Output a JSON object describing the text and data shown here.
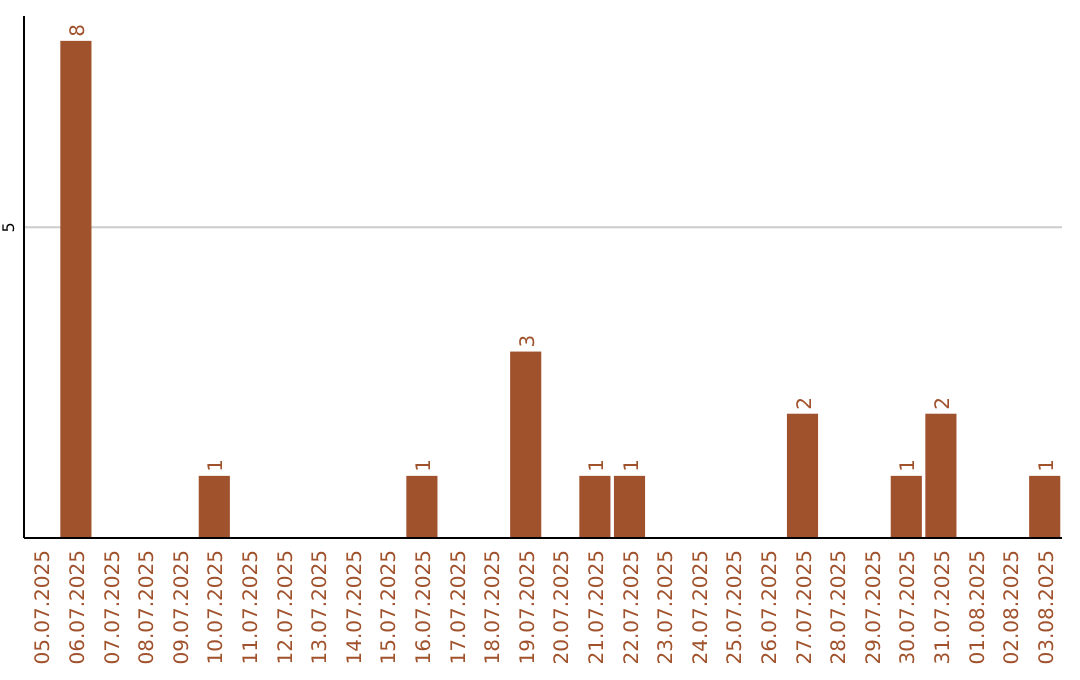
{
  "chart_data": {
    "type": "bar",
    "categories": [
      "05.07.2025",
      "06.07.2025",
      "07.07.2025",
      "08.07.2025",
      "09.07.2025",
      "10.07.2025",
      "11.07.2025",
      "12.07.2025",
      "13.07.2025",
      "14.07.2025",
      "15.07.2025",
      "16.07.2025",
      "17.07.2025",
      "18.07.2025",
      "19.07.2025",
      "20.07.2025",
      "21.07.2025",
      "22.07.2025",
      "23.07.2025",
      "24.07.2025",
      "25.07.2025",
      "26.07.2025",
      "27.07.2025",
      "28.07.2025",
      "29.07.2025",
      "30.07.2025",
      "31.07.2025",
      "01.08.2025",
      "02.08.2025",
      "03.08.2025"
    ],
    "values": [
      0,
      8,
      0,
      0,
      0,
      1,
      0,
      0,
      0,
      0,
      0,
      1,
      0,
      0,
      3,
      0,
      1,
      1,
      0,
      0,
      0,
      0,
      2,
      0,
      0,
      1,
      2,
      0,
      0,
      1
    ],
    "value_labels": [
      null,
      "8",
      null,
      null,
      null,
      "1",
      null,
      null,
      null,
      null,
      null,
      "1",
      null,
      null,
      "3",
      null,
      "1",
      "1",
      null,
      null,
      null,
      null,
      "2",
      null,
      null,
      "1",
      "2",
      null,
      null,
      "1"
    ],
    "color": "#a0522d",
    "ylim": [
      0,
      8.4
    ],
    "yticks": [
      5
    ],
    "grid": "y"
  }
}
